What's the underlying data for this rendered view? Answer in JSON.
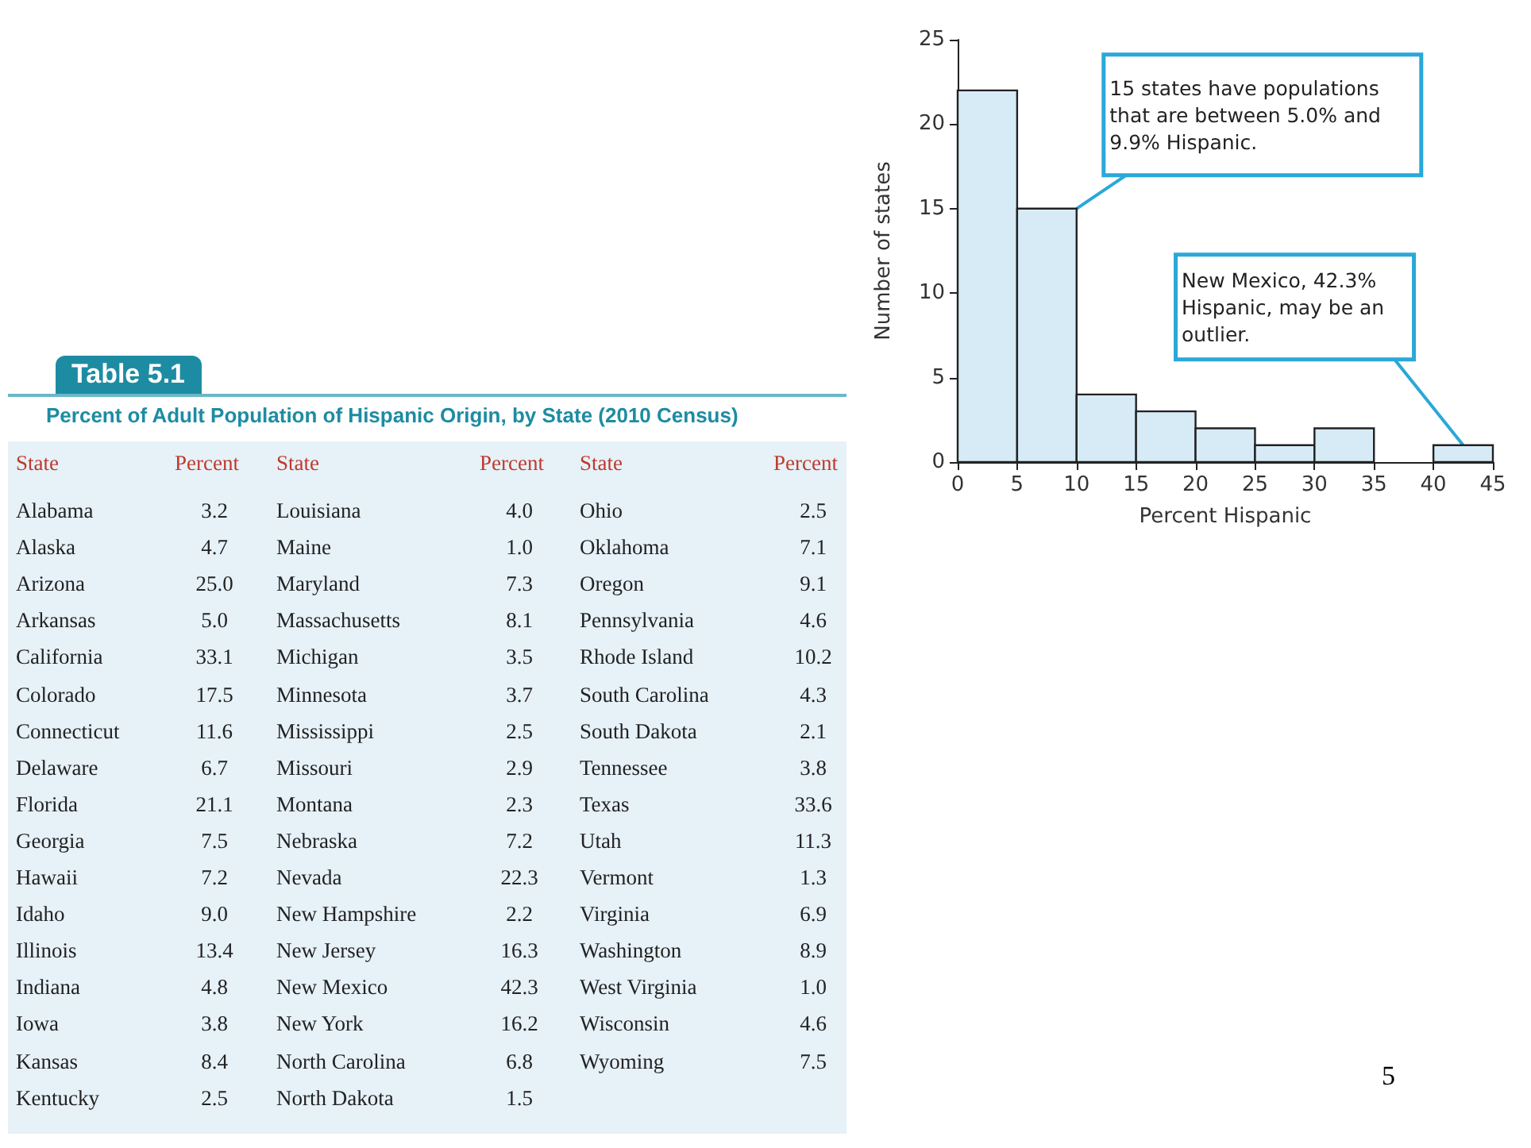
{
  "chart_data": [
    {
      "type": "histogram",
      "xlabel": "Percent Hispanic",
      "ylabel": "Number of states",
      "bins": [
        0,
        5,
        10,
        15,
        20,
        25,
        30,
        35,
        40,
        45
      ],
      "values": [
        22,
        15,
        4,
        3,
        2,
        1,
        2,
        0,
        1
      ],
      "color": "#d7ebf7",
      "xlim": [
        0,
        45
      ],
      "xticks": [
        0,
        5,
        10,
        15,
        20,
        25,
        30,
        35,
        40,
        45
      ],
      "ylim": [
        0,
        25
      ],
      "yticks": [
        0,
        5,
        10,
        15,
        20,
        25
      ],
      "grid": false,
      "annotations": [
        {
          "text": "15 states have populations that are between 5.0% and 9.9% Hispanic.",
          "x": 10,
          "y": 15
        },
        {
          "text": "New Mexico, 42.3% Hispanic, may be an outlier.",
          "x": 42.5,
          "y": 1
        },
        "5"
      ]
    },
    {
      "type": "other",
      "title": "Table 5.1",
      "subtitle": "Percent of Adult Population of Hispanic Origin, by State (2010 Census)",
      "annotations": [
        "State",
        "Percent",
        "State",
        "Percent",
        "State",
        "Percent",
        "Alabama",
        "3.2",
        "Alaska",
        "4.7",
        "Arizona",
        "25.0",
        "Arkansas",
        "5.0",
        "California",
        "33.1",
        "Colorado",
        "17.5",
        "Connecticut",
        "11.6",
        "Delaware",
        "6.7",
        "Florida",
        "21.1",
        "Georgia",
        "7.5",
        "Hawaii",
        "7.2",
        "Idaho",
        "9.0",
        "Illinois",
        "13.4",
        "Indiana",
        "4.8",
        "Iowa",
        "3.8",
        "Kansas",
        "8.4",
        "Kentucky",
        "2.5",
        "Louisiana",
        "4.0",
        "Maine",
        "1.0",
        "Maryland",
        "7.3",
        "Massachusetts",
        "8.1",
        "Michigan",
        "3.5",
        "Minnesota",
        "3.7",
        "Mississippi",
        "2.5",
        "Missouri",
        "2.9",
        "Montana",
        "2.3",
        "Nebraska",
        "7.2",
        "Nevada",
        "22.3",
        "New Hampshire",
        "2.2",
        "New Jersey",
        "16.3",
        "New Mexico",
        "42.3",
        "New York",
        "16.2",
        "North Carolina",
        "6.8",
        "North Dakota",
        "1.5",
        "Ohio",
        "2.5",
        "Oklahoma",
        "7.1",
        "Oregon",
        "9.1",
        "Pennsylvania",
        "4.6",
        "Rhode Island",
        "10.2",
        "South Carolina",
        "4.3",
        "South Dakota",
        "2.1",
        "Tennessee",
        "3.8",
        "Texas",
        "33.6",
        "Utah",
        "11.3",
        "Vermont",
        "1.3",
        "Virginia",
        "6.9",
        "Washington",
        "8.9",
        "West Virginia",
        "1.0",
        "Wisconsin",
        "4.6",
        "Wyoming",
        "7.5"
      ]
    }
  ]
}
